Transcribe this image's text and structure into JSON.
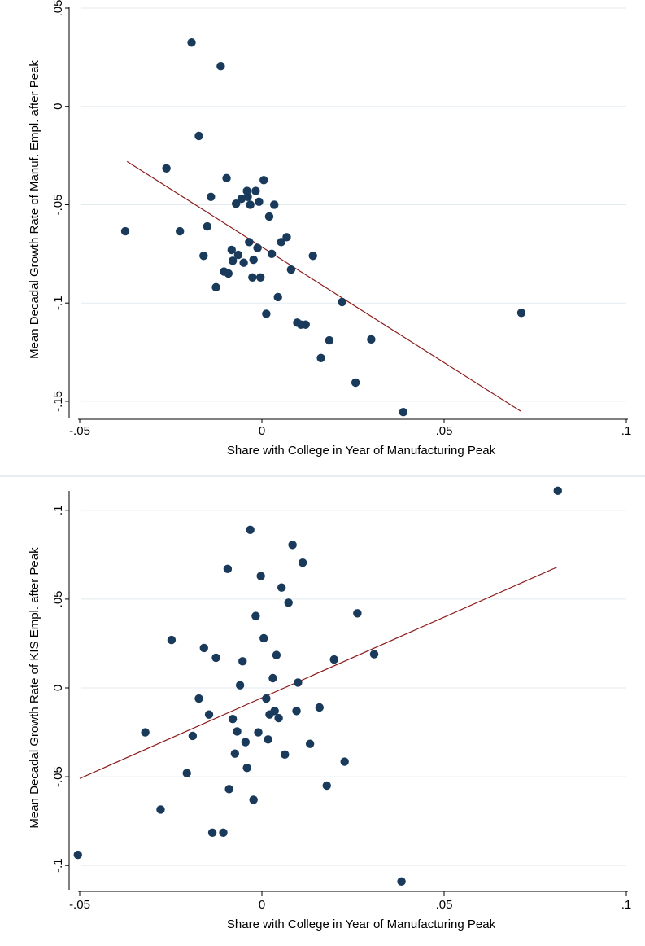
{
  "chart_data": [
    {
      "type": "scatter",
      "title": "",
      "xlabel": "Share with College in Year of Manufacturing Peak",
      "ylabel": "Mean Decadal Growth Rate of Manuf. Empl. after Peak",
      "xlim": [
        -0.05,
        0.1
      ],
      "ylim": [
        -0.155,
        0.05
      ],
      "xticks": [
        -0.05,
        0,
        0.05,
        0.1
      ],
      "xtick_labels": [
        "-.05",
        "0",
        ".05",
        ".1"
      ],
      "yticks": [
        -0.15,
        -0.1,
        -0.05,
        0,
        0.05
      ],
      "ytick_labels": [
        "-.15",
        "-.1",
        "-.05",
        "0",
        ".05"
      ],
      "grid": true,
      "fit_line": {
        "x": [
          -0.037,
          0.071
        ],
        "y": [
          -0.028,
          -0.155
        ]
      },
      "colors": {
        "points": "#1a3a5c",
        "fit": "#8b1a1a",
        "grid": "#e3ebef"
      },
      "points": [
        [
          -0.0375,
          -0.0635
        ],
        [
          -0.0262,
          -0.0315
        ],
        [
          -0.0225,
          -0.0635
        ],
        [
          -0.0193,
          0.0325
        ],
        [
          -0.0173,
          -0.015
        ],
        [
          -0.016,
          -0.076
        ],
        [
          -0.015,
          -0.061
        ],
        [
          -0.014,
          -0.046
        ],
        [
          -0.0126,
          -0.092
        ],
        [
          -0.0113,
          0.0205
        ],
        [
          -0.0104,
          -0.084
        ],
        [
          -0.0097,
          -0.0365
        ],
        [
          -0.0092,
          -0.085
        ],
        [
          -0.0083,
          -0.073
        ],
        [
          -0.008,
          -0.0785
        ],
        [
          -0.0071,
          -0.0495
        ],
        [
          -0.0065,
          -0.0755
        ],
        [
          -0.0056,
          -0.047
        ],
        [
          -0.005,
          -0.0795
        ],
        [
          -0.0041,
          -0.043
        ],
        [
          -0.0039,
          -0.046
        ],
        [
          -0.0035,
          -0.069
        ],
        [
          -0.0032,
          -0.05
        ],
        [
          -0.0026,
          -0.087
        ],
        [
          -0.0023,
          -0.078
        ],
        [
          -0.0017,
          -0.043
        ],
        [
          -0.0012,
          -0.072
        ],
        [
          -0.0008,
          -0.0485
        ],
        [
          -0.0004,
          -0.087
        ],
        [
          0.0005,
          -0.0375
        ],
        [
          0.0012,
          -0.1055
        ],
        [
          0.002,
          -0.056
        ],
        [
          0.0027,
          -0.075
        ],
        [
          0.0034,
          -0.05
        ],
        [
          0.0044,
          -0.097
        ],
        [
          0.0053,
          -0.069
        ],
        [
          0.0068,
          -0.0665
        ],
        [
          0.008,
          -0.083
        ],
        [
          0.0097,
          -0.11
        ],
        [
          0.0107,
          -0.111
        ],
        [
          0.012,
          -0.111
        ],
        [
          0.014,
          -0.076
        ],
        [
          0.0162,
          -0.128
        ],
        [
          0.0185,
          -0.119
        ],
        [
          0.022,
          -0.0995
        ],
        [
          0.0257,
          -0.1405
        ],
        [
          0.03,
          -0.1185
        ],
        [
          0.0388,
          -0.1555
        ],
        [
          0.0712,
          -0.105
        ]
      ]
    },
    {
      "type": "scatter",
      "title": "",
      "xlabel": "Share with College in Year of Manufacturing Peak",
      "ylabel": "Mean Decadal Growth Rate of KIS Empl. after Peak",
      "xlim": [
        -0.05,
        0.1
      ],
      "ylim": [
        -0.11,
        0.11
      ],
      "xticks": [
        -0.05,
        0,
        0.05,
        0.1
      ],
      "xtick_labels": [
        "-.05",
        "0",
        ".05",
        ".1"
      ],
      "yticks": [
        -0.1,
        -0.05,
        0,
        0.05,
        0.1
      ],
      "ytick_labels": [
        "-.1",
        "-.05",
        "0",
        ".05",
        ".1"
      ],
      "grid": true,
      "fit_line": {
        "x": [
          -0.05,
          0.081
        ],
        "y": [
          -0.051,
          0.068
        ]
      },
      "colors": {
        "points": "#1a3a5c",
        "fit": "#8b1a1a",
        "grid": "#e3ebef"
      },
      "points": [
        [
          -0.0505,
          -0.094
        ],
        [
          -0.032,
          -0.025
        ],
        [
          -0.0278,
          -0.0685
        ],
        [
          -0.0248,
          0.027
        ],
        [
          -0.0206,
          -0.048
        ],
        [
          -0.019,
          -0.027
        ],
        [
          -0.0173,
          -0.006
        ],
        [
          -0.0159,
          0.0225
        ],
        [
          -0.0145,
          -0.015
        ],
        [
          -0.0136,
          -0.0815
        ],
        [
          -0.0126,
          0.017
        ],
        [
          -0.0106,
          -0.0815
        ],
        [
          -0.0094,
          0.067
        ],
        [
          -0.009,
          -0.057
        ],
        [
          -0.008,
          -0.0175
        ],
        [
          -0.0074,
          -0.037
        ],
        [
          -0.0068,
          -0.0245
        ],
        [
          -0.006,
          0.0015
        ],
        [
          -0.0053,
          0.015
        ],
        [
          -0.0045,
          -0.0305
        ],
        [
          -0.0041,
          -0.045
        ],
        [
          -0.0032,
          0.089
        ],
        [
          -0.0023,
          -0.063
        ],
        [
          -0.0017,
          0.0405
        ],
        [
          -0.001,
          -0.025
        ],
        [
          -0.0003,
          0.063
        ],
        [
          0.0005,
          0.028
        ],
        [
          0.0012,
          -0.006
        ],
        [
          0.0017,
          -0.029
        ],
        [
          0.0021,
          -0.015
        ],
        [
          0.003,
          0.0055
        ],
        [
          0.0035,
          -0.013
        ],
        [
          0.004,
          0.0185
        ],
        [
          0.0046,
          -0.017
        ],
        [
          0.0054,
          0.0565
        ],
        [
          0.0063,
          -0.0375
        ],
        [
          0.0073,
          0.048
        ],
        [
          0.0084,
          0.0805
        ],
        [
          0.0095,
          -0.013
        ],
        [
          0.0099,
          0.003
        ],
        [
          0.0112,
          0.0705
        ],
        [
          0.0132,
          -0.0315
        ],
        [
          0.0158,
          -0.011
        ],
        [
          0.0178,
          -0.055
        ],
        [
          0.0198,
          0.016
        ],
        [
          0.0227,
          -0.0415
        ],
        [
          0.0262,
          0.042
        ],
        [
          0.0308,
          0.019
        ],
        [
          0.0383,
          -0.109
        ],
        [
          0.0812,
          0.111
        ]
      ]
    }
  ]
}
